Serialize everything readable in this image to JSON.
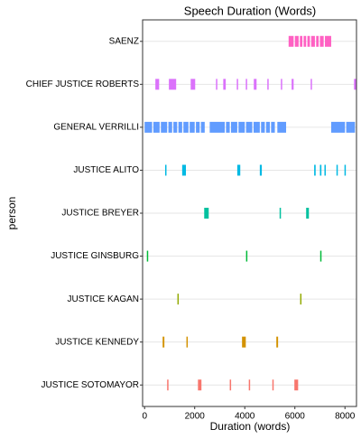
{
  "chart_data": {
    "type": "segments",
    "title": "Speech Duration (Words)",
    "x_label": "Duration (words)",
    "y_label": "person",
    "xlim": [
      -80,
      8460
    ],
    "xticks": [
      0,
      2000,
      4000,
      6000,
      8000
    ],
    "grid": true,
    "series": [
      {
        "name": "SAENZ",
        "color": "#FF61C3",
        "starts": [
          5750,
          6000,
          6200,
          6350,
          6500,
          6650,
          6850,
          7000,
          7200
        ],
        "ends": [
          5950,
          6150,
          6300,
          6450,
          6600,
          6800,
          6950,
          7150,
          7450
        ]
      },
      {
        "name": "CHIEF JUSTICE ROBERTS",
        "color": "#DB72FB",
        "starts": [
          430,
          970,
          1840,
          2850,
          3140,
          3680,
          4040,
          4360,
          4900,
          5440,
          5870,
          6630,
          8360
        ],
        "ends": [
          580,
          1260,
          2020,
          2880,
          3240,
          3710,
          4070,
          4470,
          4940,
          5480,
          5950,
          6670,
          8450
        ]
      },
      {
        "name": "GENERAL VERRILLI",
        "color": "#619CFF",
        "starts": [
          0,
          350,
          650,
          950,
          1150,
          1350,
          1550,
          1800,
          2050,
          2250,
          2600,
          3250,
          3450,
          3750,
          4050,
          4350,
          4650,
          4850,
          5050,
          5300,
          7450,
          8050
        ],
        "ends": [
          300,
          600,
          900,
          1100,
          1300,
          1500,
          1750,
          2000,
          2200,
          2400,
          3200,
          3400,
          3700,
          4000,
          4300,
          4600,
          4800,
          5000,
          5200,
          5650,
          8000,
          8400
        ]
      },
      {
        "name": "JUSTICE ALITO",
        "color": "#00B9E3",
        "starts": [
          820,
          1500,
          3700,
          4600,
          6770,
          7000,
          7180,
          7660,
          7980
        ],
        "ends": [
          860,
          1650,
          3820,
          4680,
          6830,
          7060,
          7230,
          7710,
          8030
        ]
      },
      {
        "name": "JUSTICE BREYER",
        "color": "#00C19F",
        "starts": [
          2380,
          5390,
          6450
        ],
        "ends": [
          2560,
          5430,
          6560
        ]
      },
      {
        "name": "JUSTICE GINSBURG",
        "color": "#00BA38",
        "starts": [
          90,
          4050,
          7010
        ],
        "ends": [
          130,
          4090,
          7050
        ]
      },
      {
        "name": "JUSTICE KAGAN",
        "color": "#93AA00",
        "starts": [
          1310,
          6210
        ],
        "ends": [
          1350,
          6250
        ]
      },
      {
        "name": "JUSTICE KENNEDY",
        "color": "#D39200",
        "starts": [
          720,
          1670,
          3890,
          5260
        ],
        "ends": [
          790,
          1710,
          4040,
          5330
        ]
      },
      {
        "name": "JUSTICE SOTOMAYOR",
        "color": "#F8766D",
        "starts": [
          900,
          2130,
          3400,
          4160,
          5100,
          5980
        ],
        "ends": [
          940,
          2270,
          3440,
          4200,
          5140,
          6130
        ]
      }
    ]
  }
}
